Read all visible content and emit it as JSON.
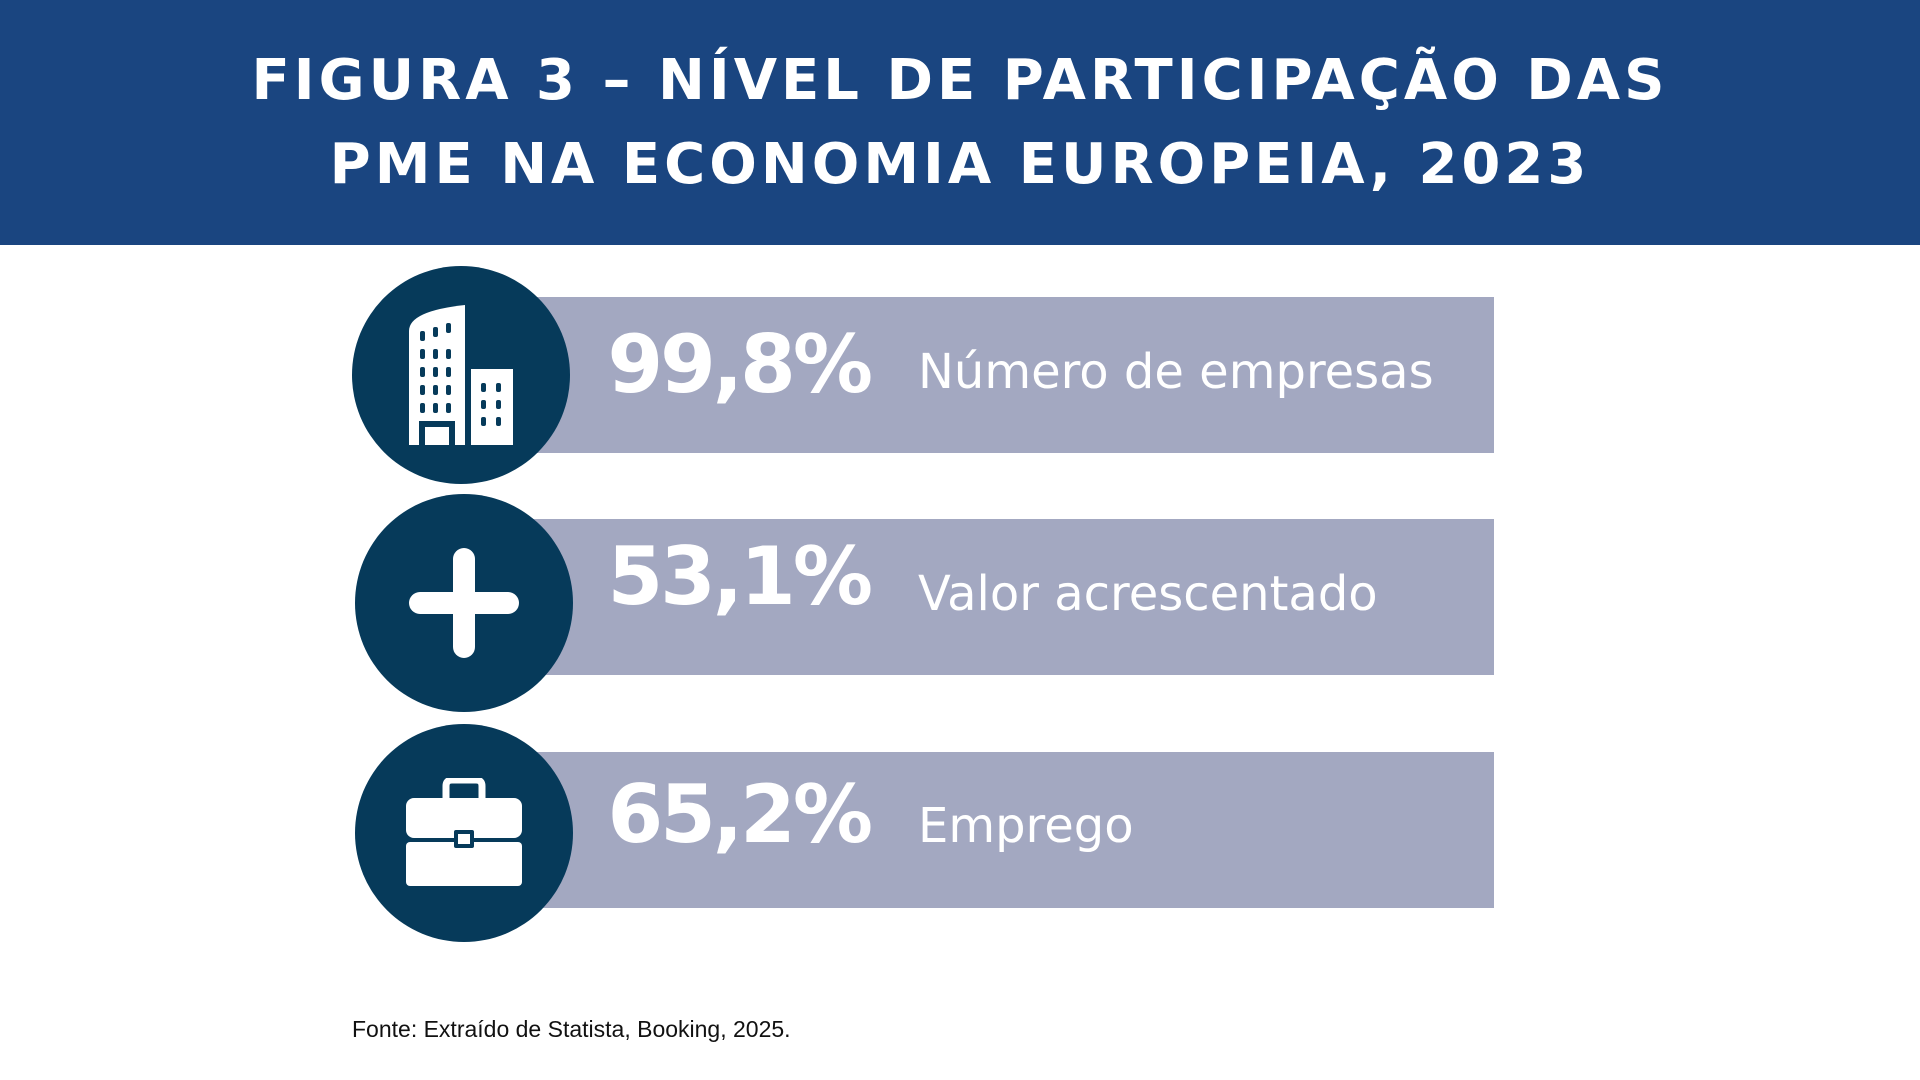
{
  "chart_data": {
    "type": "table",
    "title_lines": [
      "FIGURA 3 – NÍVEL DE PARTICIPAÇÃO DAS",
      "PME NA ECONOMIA EUROPEIA, 2023"
    ],
    "items": [
      {
        "value": 99.8,
        "display": "99,8%",
        "label": "Número de empresas",
        "icon": "buildings-icon"
      },
      {
        "value": 53.1,
        "display": "53,1%",
        "label": "Valor acrescentado",
        "icon": "plus-icon"
      },
      {
        "value": 65.2,
        "display": "65,2%",
        "label": "Emprego",
        "icon": "briefcase-icon"
      }
    ],
    "unit": "%",
    "source": "Fonte: Extraído de Statista, Booking, 2025."
  },
  "colors": {
    "header_bg": "#1a4580",
    "circle_bg": "#063a5a",
    "bar_bg": "#a3a8c1",
    "text_light": "#ffffff"
  }
}
